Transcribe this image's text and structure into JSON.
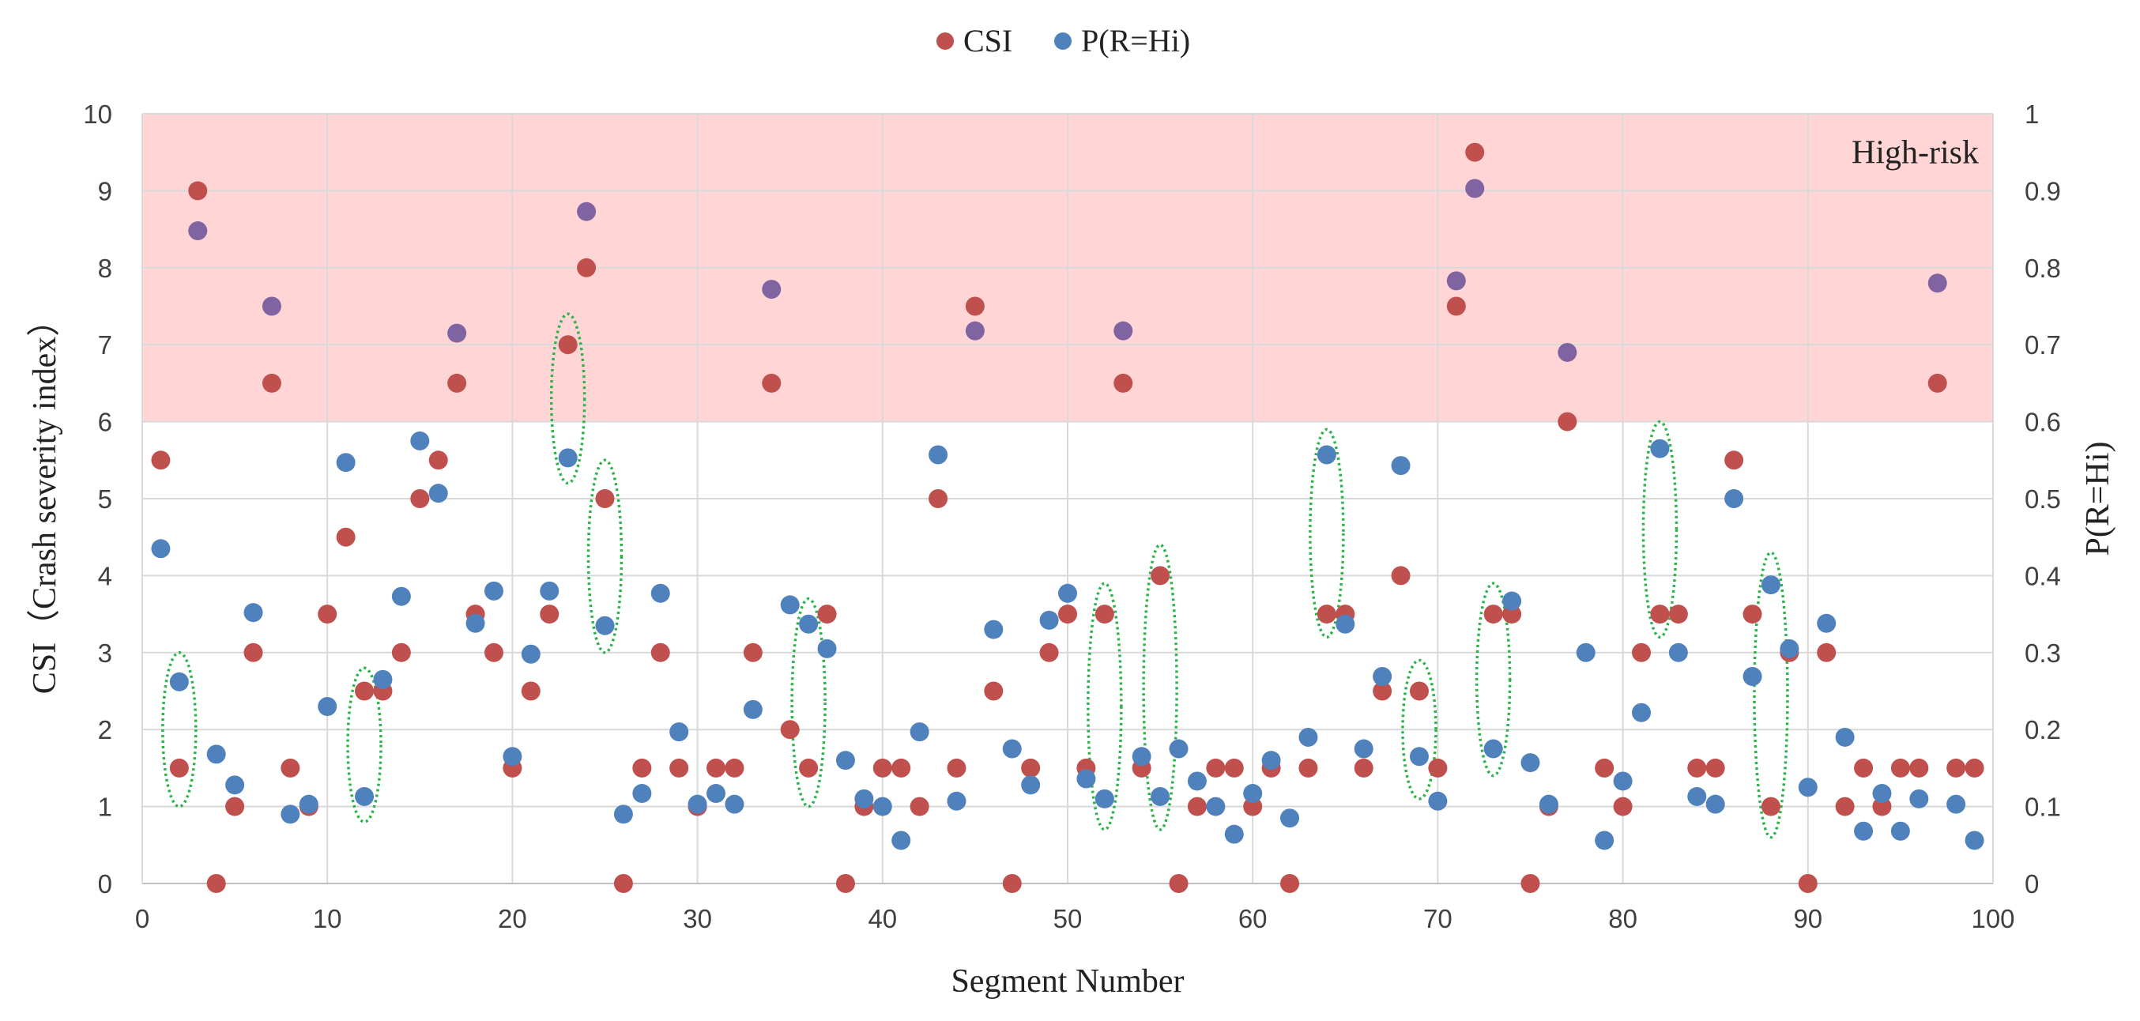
{
  "chart_data": {
    "type": "scatter",
    "x_axis": {
      "label": "Segment Number",
      "range": [
        0,
        100
      ],
      "ticks": [
        0,
        10,
        20,
        30,
        40,
        50,
        60,
        70,
        80,
        90,
        100
      ]
    },
    "y_axis_left": {
      "label": "CSI（Crash severity index）",
      "range": [
        0,
        10
      ],
      "ticks": [
        0,
        1,
        2,
        3,
        4,
        5,
        6,
        7,
        8,
        9,
        10
      ]
    },
    "y_axis_right": {
      "label": "P(R=Hi)",
      "range": [
        0,
        1
      ],
      "ticks": [
        "0",
        "0.1",
        "0.2",
        "0.3",
        "0.4",
        "0.5",
        "0.6",
        "0.7",
        "0.8",
        "0.9",
        "1"
      ]
    },
    "grid": true,
    "legend_position": "top-center",
    "colors": {
      "csi": "#c0504d",
      "p": "#4f81bd",
      "overlap": "#8064a2",
      "high_risk_band": "#ffd5d5",
      "ellipse": "#2cb34a",
      "grid": "#d9d9d9"
    },
    "high_risk_zone": {
      "label": "High-risk",
      "csi_from": 6,
      "csi_to": 10
    },
    "series": [
      {
        "name": "CSI",
        "axis": "left",
        "points": [
          [
            1,
            5.5
          ],
          [
            2,
            1.5
          ],
          [
            3,
            9
          ],
          [
            4,
            0
          ],
          [
            5,
            1
          ],
          [
            6,
            3
          ],
          [
            7,
            6.5
          ],
          [
            8,
            1.5
          ],
          [
            9,
            1
          ],
          [
            10,
            3.5
          ],
          [
            11,
            4.5
          ],
          [
            12,
            2.5
          ],
          [
            13,
            2.5
          ],
          [
            14,
            3
          ],
          [
            15,
            5
          ],
          [
            16,
            5.5
          ],
          [
            17,
            6.5
          ],
          [
            18,
            3.5
          ],
          [
            19,
            3
          ],
          [
            20,
            1.5
          ],
          [
            21,
            2.5
          ],
          [
            22,
            3.5
          ],
          [
            23,
            7
          ],
          [
            24,
            8
          ],
          [
            25,
            5
          ],
          [
            26,
            0
          ],
          [
            27,
            1.5
          ],
          [
            28,
            3
          ],
          [
            29,
            1.5
          ],
          [
            30,
            1
          ],
          [
            31,
            1.5
          ],
          [
            32,
            1.5
          ],
          [
            33,
            3
          ],
          [
            34,
            6.5
          ],
          [
            35,
            2
          ],
          [
            36,
            1.5
          ],
          [
            37,
            3.5
          ],
          [
            38,
            0
          ],
          [
            39,
            1
          ],
          [
            40,
            1.5
          ],
          [
            41,
            1.5
          ],
          [
            42,
            1
          ],
          [
            43,
            5
          ],
          [
            44,
            1.5
          ],
          [
            45,
            7.5
          ],
          [
            46,
            2.5
          ],
          [
            47,
            0
          ],
          [
            48,
            1.5
          ],
          [
            49,
            3
          ],
          [
            50,
            3.5
          ],
          [
            51,
            1.5
          ],
          [
            52,
            3.5
          ],
          [
            53,
            6.5
          ],
          [
            54,
            1.5
          ],
          [
            55,
            4
          ],
          [
            56,
            0
          ],
          [
            57,
            1
          ],
          [
            58,
            1.5
          ],
          [
            59,
            1.5
          ],
          [
            60,
            1
          ],
          [
            61,
            1.5
          ],
          [
            62,
            0
          ],
          [
            63,
            1.5
          ],
          [
            64,
            3.5
          ],
          [
            65,
            3.5
          ],
          [
            66,
            1.5
          ],
          [
            67,
            2.5
          ],
          [
            68,
            4
          ],
          [
            69,
            2.5
          ],
          [
            70,
            1.5
          ],
          [
            71,
            7.5
          ],
          [
            72,
            9.5
          ],
          [
            73,
            3.5
          ],
          [
            74,
            3.5
          ],
          [
            75,
            0
          ],
          [
            76,
            1
          ],
          [
            77,
            6
          ],
          [
            79,
            1.5
          ],
          [
            80,
            1
          ],
          [
            81,
            3
          ],
          [
            82,
            3.5
          ],
          [
            83,
            3.5
          ],
          [
            84,
            1.5
          ],
          [
            85,
            1.5
          ],
          [
            86,
            5.5
          ],
          [
            87,
            3.5
          ],
          [
            88,
            1
          ],
          [
            89,
            3
          ],
          [
            90,
            0
          ],
          [
            91,
            3
          ],
          [
            92,
            1
          ],
          [
            93,
            1.5
          ],
          [
            94,
            1
          ],
          [
            95,
            1.5
          ],
          [
            96,
            1.5
          ],
          [
            97,
            6.5
          ],
          [
            98,
            1.5
          ],
          [
            99,
            1.5
          ]
        ]
      },
      {
        "name": "P(R=Hi)",
        "axis": "right",
        "points": [
          [
            1,
            0.435
          ],
          [
            2,
            0.262
          ],
          [
            3,
            0.848
          ],
          [
            4,
            0.168
          ],
          [
            5,
            0.128
          ],
          [
            6,
            0.352
          ],
          [
            7,
            0.75
          ],
          [
            8,
            0.09
          ],
          [
            9,
            0.103
          ],
          [
            10,
            0.23
          ],
          [
            11,
            0.547
          ],
          [
            12,
            0.113
          ],
          [
            13,
            0.265
          ],
          [
            14,
            0.373
          ],
          [
            15,
            0.575
          ],
          [
            16,
            0.507
          ],
          [
            17,
            0.715
          ],
          [
            18,
            0.338
          ],
          [
            19,
            0.38
          ],
          [
            20,
            0.165
          ],
          [
            21,
            0.298
          ],
          [
            22,
            0.38
          ],
          [
            23,
            0.553
          ],
          [
            24,
            0.873
          ],
          [
            25,
            0.335
          ],
          [
            26,
            0.09
          ],
          [
            27,
            0.117
          ],
          [
            28,
            0.377
          ],
          [
            29,
            0.197
          ],
          [
            30,
            0.103
          ],
          [
            31,
            0.117
          ],
          [
            32,
            0.103
          ],
          [
            33,
            0.226
          ],
          [
            34,
            0.772
          ],
          [
            35,
            0.362
          ],
          [
            36,
            0.337
          ],
          [
            37,
            0.305
          ],
          [
            38,
            0.16
          ],
          [
            39,
            0.11
          ],
          [
            40,
            0.1
          ],
          [
            41,
            0.056
          ],
          [
            42,
            0.197
          ],
          [
            43,
            0.557
          ],
          [
            44,
            0.107
          ],
          [
            45,
            0.718
          ],
          [
            46,
            0.33
          ],
          [
            47,
            0.175
          ],
          [
            48,
            0.128
          ],
          [
            49,
            0.342
          ],
          [
            50,
            0.377
          ],
          [
            51,
            0.136
          ],
          [
            52,
            0.11
          ],
          [
            53,
            0.718
          ],
          [
            54,
            0.165
          ],
          [
            55,
            0.113
          ],
          [
            56,
            0.175
          ],
          [
            57,
            0.133
          ],
          [
            58,
            0.1
          ],
          [
            59,
            0.064
          ],
          [
            60,
            0.117
          ],
          [
            61,
            0.16
          ],
          [
            62,
            0.085
          ],
          [
            63,
            0.19
          ],
          [
            64,
            0.557
          ],
          [
            65,
            0.337
          ],
          [
            66,
            0.175
          ],
          [
            67,
            0.269
          ],
          [
            68,
            0.543
          ],
          [
            69,
            0.165
          ],
          [
            70,
            0.107
          ],
          [
            71,
            0.783
          ],
          [
            72,
            0.903
          ],
          [
            73,
            0.175
          ],
          [
            74,
            0.367
          ],
          [
            75,
            0.157
          ],
          [
            76,
            0.103
          ],
          [
            77,
            0.69
          ],
          [
            78,
            0.3
          ],
          [
            79,
            0.056
          ],
          [
            80,
            0.133
          ],
          [
            81,
            0.222
          ],
          [
            82,
            0.565
          ],
          [
            83,
            0.3
          ],
          [
            84,
            0.113
          ],
          [
            85,
            0.103
          ],
          [
            86,
            0.5
          ],
          [
            87,
            0.269
          ],
          [
            88,
            0.388
          ],
          [
            89,
            0.305
          ],
          [
            90,
            0.125
          ],
          [
            91,
            0.338
          ],
          [
            92,
            0.19
          ],
          [
            93,
            0.068
          ],
          [
            94,
            0.117
          ],
          [
            95,
            0.068
          ],
          [
            96,
            0.11
          ],
          [
            97,
            0.78
          ],
          [
            98,
            0.103
          ],
          [
            99,
            0.056
          ]
        ]
      }
    ],
    "highlighted_segments": [
      {
        "segment": 2,
        "csi_low": 1.0,
        "csi_high": 3.0
      },
      {
        "segment": 12,
        "csi_low": 0.8,
        "csi_high": 2.8
      },
      {
        "segment": 23,
        "csi_low": 5.2,
        "csi_high": 7.4
      },
      {
        "segment": 25,
        "csi_low": 3.0,
        "csi_high": 5.5
      },
      {
        "segment": 36,
        "csi_low": 1.0,
        "csi_high": 3.7
      },
      {
        "segment": 52,
        "csi_low": 0.7,
        "csi_high": 3.9
      },
      {
        "segment": 55,
        "csi_low": 0.7,
        "csi_high": 4.4
      },
      {
        "segment": 64,
        "csi_low": 3.2,
        "csi_high": 5.9
      },
      {
        "segment": 69,
        "csi_low": 1.1,
        "csi_high": 2.9
      },
      {
        "segment": 73,
        "csi_low": 1.4,
        "csi_high": 3.9
      },
      {
        "segment": 82,
        "csi_low": 3.2,
        "csi_high": 6.0
      },
      {
        "segment": 88,
        "csi_low": 0.6,
        "csi_high": 4.3
      }
    ]
  }
}
